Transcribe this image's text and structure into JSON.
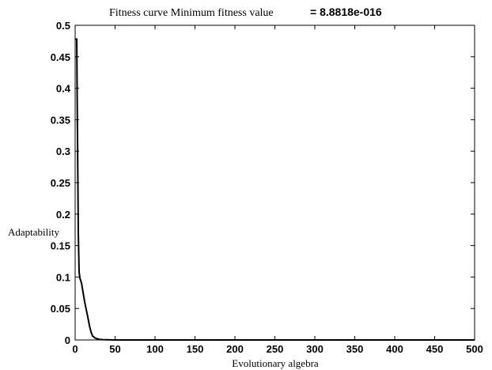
{
  "chart_data": {
    "type": "line",
    "title": "Fitness curve    Minimum fitness value",
    "title_value": "= 8.8818e-016",
    "xlabel": "Evolutionary algebra",
    "ylabel": "Adaptability",
    "xlim": [
      0,
      500
    ],
    "ylim": [
      0,
      0.5
    ],
    "xticks": [
      0,
      50,
      100,
      150,
      200,
      250,
      300,
      350,
      400,
      450,
      500
    ],
    "yticks": [
      0,
      0.05,
      0.1,
      0.15,
      0.2,
      0.25,
      0.3,
      0.35,
      0.4,
      0.45,
      0.5
    ],
    "xtick_labels": [
      "0",
      "50",
      "100",
      "150",
      "200",
      "250",
      "300",
      "350",
      "400",
      "450",
      "500"
    ],
    "ytick_labels": [
      "0",
      "0.05",
      "0.1",
      "0.15",
      "0.2",
      "0.25",
      "0.3",
      "0.35",
      "0.4",
      "0.45",
      "0.5"
    ],
    "grid": false,
    "line_color": "#000000",
    "series": [
      {
        "x": [
          0,
          1,
          2,
          3,
          4,
          5,
          6,
          8,
          10,
          12,
          14,
          16,
          18,
          20,
          22,
          25,
          30,
          35,
          40,
          50,
          100,
          200,
          300,
          400,
          500
        ],
        "y": [
          0.478,
          0.478,
          0.478,
          0.32,
          0.17,
          0.108,
          0.098,
          0.09,
          0.075,
          0.06,
          0.048,
          0.035,
          0.022,
          0.012,
          0.006,
          0.003,
          0.001,
          0.0005,
          0.0002,
          0,
          0,
          0,
          0,
          0,
          0
        ]
      }
    ]
  }
}
